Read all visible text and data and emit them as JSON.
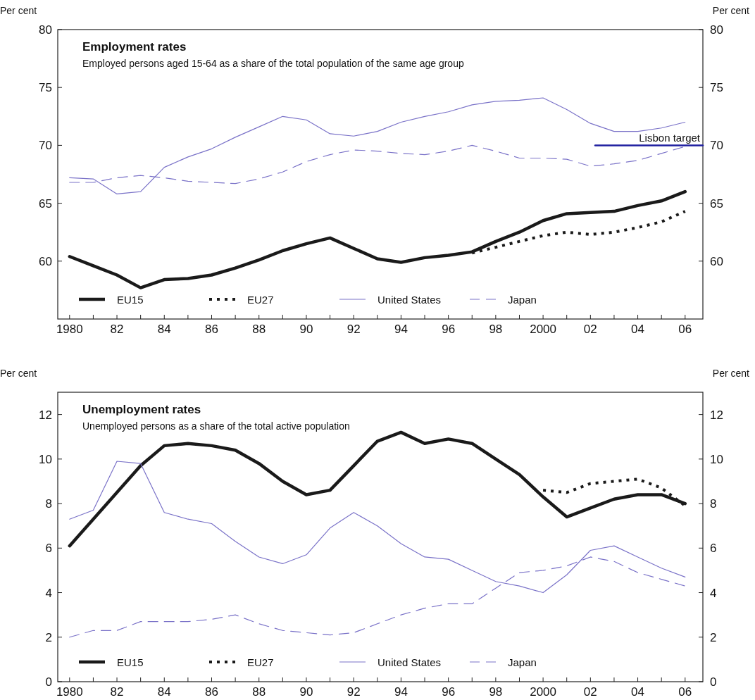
{
  "chart_data": [
    {
      "type": "line",
      "title": "Employment rates",
      "subtitle": "Employed persons aged 15-64 as a share of the total population of the same age group",
      "ylabel": "Per cent",
      "y2label": "Per cent",
      "x": [
        1980,
        1981,
        1982,
        1983,
        1984,
        1985,
        1986,
        1987,
        1988,
        1989,
        1990,
        1991,
        1992,
        1993,
        1994,
        1995,
        1996,
        1997,
        1998,
        1999,
        2000,
        2001,
        2002,
        2003,
        2004,
        2005,
        2006
      ],
      "series": [
        {
          "name": "EU15",
          "color": "#1a1a1a",
          "line_style": "solid",
          "values": [
            60.4,
            59.6,
            58.8,
            57.7,
            58.4,
            58.5,
            58.8,
            59.4,
            60.1,
            60.9,
            61.5,
            62.0,
            61.1,
            60.2,
            59.9,
            60.3,
            60.5,
            60.8,
            61.7,
            62.5,
            63.5,
            64.1,
            64.2,
            64.3,
            64.8,
            65.2,
            66.0
          ]
        },
        {
          "name": "EU27",
          "color": "#1a1a1a",
          "line_style": "dotted",
          "x": [
            1997,
            1998,
            1999,
            2000,
            2001,
            2002,
            2003,
            2004,
            2005,
            2006
          ],
          "values": [
            60.7,
            61.2,
            61.7,
            62.2,
            62.5,
            62.3,
            62.5,
            62.9,
            63.4,
            64.3
          ]
        },
        {
          "name": "United States",
          "color": "#7a72c8",
          "line_style": "solid",
          "values": [
            67.2,
            67.1,
            65.8,
            66.0,
            68.1,
            69.0,
            69.7,
            70.7,
            71.6,
            72.5,
            72.2,
            71.0,
            70.8,
            71.2,
            72.0,
            72.5,
            72.9,
            73.5,
            73.8,
            73.9,
            74.1,
            73.1,
            71.9,
            71.2,
            71.2,
            71.5,
            72.0
          ]
        },
        {
          "name": "Japan",
          "color": "#7a72c8",
          "line_style": "dashed",
          "values": [
            66.8,
            66.8,
            67.2,
            67.4,
            67.2,
            66.9,
            66.8,
            66.7,
            67.1,
            67.7,
            68.6,
            69.2,
            69.6,
            69.5,
            69.3,
            69.2,
            69.5,
            70.0,
            69.5,
            68.9,
            68.9,
            68.8,
            68.2,
            68.4,
            68.7,
            69.3,
            69.9
          ]
        },
        {
          "name": "Lisbon target",
          "type": "line",
          "color": "#1f1fa0",
          "line_style": "solid",
          "x": [
            2002.2,
            2006.75
          ],
          "values": [
            70,
            70
          ]
        }
      ],
      "xlim": [
        1979.5,
        2006.75
      ],
      "xticks": [
        {
          "value": 1980,
          "label": "1980"
        },
        {
          "value": 1981,
          "label": null
        },
        {
          "value": 1982,
          "label": "82"
        },
        {
          "value": 1983,
          "label": null
        },
        {
          "value": 1984,
          "label": "84"
        },
        {
          "value": 1985,
          "label": null
        },
        {
          "value": 1986,
          "label": "86"
        },
        {
          "value": 1987,
          "label": null
        },
        {
          "value": 1988,
          "label": "88"
        },
        {
          "value": 1989,
          "label": null
        },
        {
          "value": 1990,
          "label": "90"
        },
        {
          "value": 1991,
          "label": null
        },
        {
          "value": 1992,
          "label": "92"
        },
        {
          "value": 1993,
          "label": null
        },
        {
          "value": 1994,
          "label": "94"
        },
        {
          "value": 1995,
          "label": null
        },
        {
          "value": 1996,
          "label": "96"
        },
        {
          "value": 1997,
          "label": null
        },
        {
          "value": 1998,
          "label": "98"
        },
        {
          "value": 1999,
          "label": null
        },
        {
          "value": 2000,
          "label": "2000"
        },
        {
          "value": 2001,
          "label": null
        },
        {
          "value": 2002,
          "label": "02"
        },
        {
          "value": 2003,
          "label": null
        },
        {
          "value": 2004,
          "label": "04"
        },
        {
          "value": 2005,
          "label": null
        },
        {
          "value": 2006,
          "label": "06"
        }
      ],
      "ylim": [
        55,
        80
      ],
      "yticks": [
        60,
        65,
        70,
        75,
        80
      ],
      "y2lim": [
        55,
        80
      ],
      "y2ticks": [
        60,
        65,
        70,
        75,
        80
      ],
      "legend": "bottom",
      "grid": false
    },
    {
      "type": "line",
      "title": "Unemployment rates",
      "subtitle": "Unemployed persons as a share of the total active population",
      "ylabel": "Per cent",
      "y2label": "Per cent",
      "x": [
        1980,
        1981,
        1982,
        1983,
        1984,
        1985,
        1986,
        1987,
        1988,
        1989,
        1990,
        1991,
        1992,
        1993,
        1994,
        1995,
        1996,
        1997,
        1998,
        1999,
        2000,
        2001,
        2002,
        2003,
        2004,
        2005,
        2006
      ],
      "series": [
        {
          "name": "EU15",
          "color": "#1a1a1a",
          "line_style": "solid",
          "values": [
            6.1,
            7.3,
            8.5,
            9.7,
            10.6,
            10.7,
            10.6,
            10.4,
            9.8,
            9.0,
            8.4,
            8.6,
            9.7,
            10.8,
            11.2,
            10.7,
            10.9,
            10.7,
            10.0,
            9.3,
            8.3,
            7.4,
            7.8,
            8.2,
            8.4,
            8.4,
            8.0
          ]
        },
        {
          "name": "EU27",
          "color": "#1a1a1a",
          "line_style": "dotted",
          "x": [
            2000,
            2001,
            2002,
            2003,
            2004,
            2005,
            2006
          ],
          "values": [
            8.6,
            8.5,
            8.9,
            9.0,
            9.1,
            8.7,
            7.9
          ]
        },
        {
          "name": "United States",
          "color": "#7a72c8",
          "line_style": "solid",
          "values": [
            7.3,
            7.7,
            9.9,
            9.8,
            7.6,
            7.3,
            7.1,
            6.3,
            5.6,
            5.3,
            5.7,
            6.9,
            7.6,
            7.0,
            6.2,
            5.6,
            5.5,
            5.0,
            4.5,
            4.3,
            4.0,
            4.8,
            5.9,
            6.1,
            5.6,
            5.1,
            4.7
          ]
        },
        {
          "name": "Japan",
          "color": "#7a72c8",
          "line_style": "dashed",
          "values": [
            2.0,
            2.3,
            2.3,
            2.7,
            2.7,
            2.7,
            2.8,
            3.0,
            2.6,
            2.3,
            2.2,
            2.1,
            2.2,
            2.6,
            3.0,
            3.3,
            3.5,
            3.5,
            4.2,
            4.9,
            5.0,
            5.2,
            5.6,
            5.4,
            4.9,
            4.6,
            4.3
          ]
        }
      ],
      "xlim": [
        1979.5,
        2006.75
      ],
      "xticks": [
        {
          "value": 1980,
          "label": "1980"
        },
        {
          "value": 1981,
          "label": null
        },
        {
          "value": 1982,
          "label": "82"
        },
        {
          "value": 1983,
          "label": null
        },
        {
          "value": 1984,
          "label": "84"
        },
        {
          "value": 1985,
          "label": null
        },
        {
          "value": 1986,
          "label": "86"
        },
        {
          "value": 1987,
          "label": null
        },
        {
          "value": 1988,
          "label": "88"
        },
        {
          "value": 1989,
          "label": null
        },
        {
          "value": 1990,
          "label": "90"
        },
        {
          "value": 1991,
          "label": null
        },
        {
          "value": 1992,
          "label": "92"
        },
        {
          "value": 1993,
          "label": null
        },
        {
          "value": 1994,
          "label": "94"
        },
        {
          "value": 1995,
          "label": null
        },
        {
          "value": 1996,
          "label": "96"
        },
        {
          "value": 1997,
          "label": null
        },
        {
          "value": 1998,
          "label": "98"
        },
        {
          "value": 1999,
          "label": null
        },
        {
          "value": 2000,
          "label": "2000"
        },
        {
          "value": 2001,
          "label": null
        },
        {
          "value": 2002,
          "label": "02"
        },
        {
          "value": 2003,
          "label": null
        },
        {
          "value": 2004,
          "label": "04"
        },
        {
          "value": 2005,
          "label": null
        },
        {
          "value": 2006,
          "label": "06"
        }
      ],
      "ylim": [
        0,
        13
      ],
      "yticks": [
        0,
        2,
        4,
        6,
        8,
        10,
        12
      ],
      "y2lim": [
        0,
        13
      ],
      "y2ticks": [
        0,
        2,
        4,
        6,
        8,
        10,
        12
      ],
      "legend": "bottom",
      "grid": false
    }
  ]
}
